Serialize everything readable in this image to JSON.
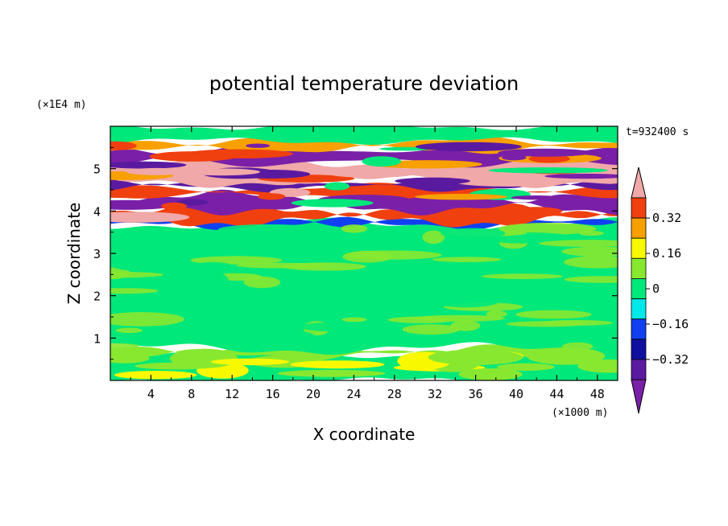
{
  "chart_data": {
    "type": "heatmap",
    "title": "potential temperature deviation",
    "xlabel": "X coordinate",
    "ylabel": "Z coordinate",
    "x_unit": "(×1000 m)",
    "y_unit": "(×1E4 m)",
    "time_label": "t=932400 s",
    "xlim": [
      0,
      50
    ],
    "ylim": [
      0,
      6
    ],
    "x_ticks": [
      4,
      8,
      12,
      16,
      20,
      24,
      28,
      32,
      36,
      40,
      44,
      48
    ],
    "y_ticks": [
      1,
      2,
      3,
      4,
      5
    ],
    "colorbar": {
      "levels": [
        -0.4,
        -0.32,
        -0.24,
        -0.16,
        -0.08,
        0,
        0.08,
        0.16,
        0.24,
        0.32,
        0.4
      ],
      "tick_values": [
        0.32,
        0.16,
        0,
        -0.16,
        -0.32
      ],
      "tick_labels": [
        "0.32",
        "0.16",
        "0",
        "−0.16",
        "−0.32"
      ],
      "colors": [
        "#7a1fa8",
        "#5a1aa0",
        "#1010a0",
        "#1040f0",
        "#00e8e8",
        "#00e87a",
        "#88e830",
        "#f8f800",
        "#f8a000",
        "#f04010",
        "#f0a8a8"
      ],
      "extend": "both"
    },
    "bands": [
      {
        "z": [
          0.0,
          0.6
        ],
        "class": 0
      },
      {
        "z": [
          0.6,
          0.75
        ],
        "class": 1
      },
      {
        "z": [
          0.75,
          3.7
        ],
        "class": 0
      },
      {
        "z": [
          3.7,
          3.78
        ],
        "class": -2
      },
      {
        "z": [
          3.78,
          4.05
        ],
        "class": 4
      },
      {
        "z": [
          4.05,
          4.35
        ],
        "class": -5
      },
      {
        "z": [
          4.35,
          4.55
        ],
        "class": 4
      },
      {
        "z": [
          4.55,
          4.7
        ],
        "class": -4
      },
      {
        "z": [
          4.7,
          5.15
        ],
        "class": 5
      },
      {
        "z": [
          5.15,
          5.45
        ],
        "class": -5
      },
      {
        "z": [
          5.45,
          5.65
        ],
        "class": 3
      },
      {
        "z": [
          5.65,
          6.0
        ],
        "class": 0
      }
    ]
  }
}
